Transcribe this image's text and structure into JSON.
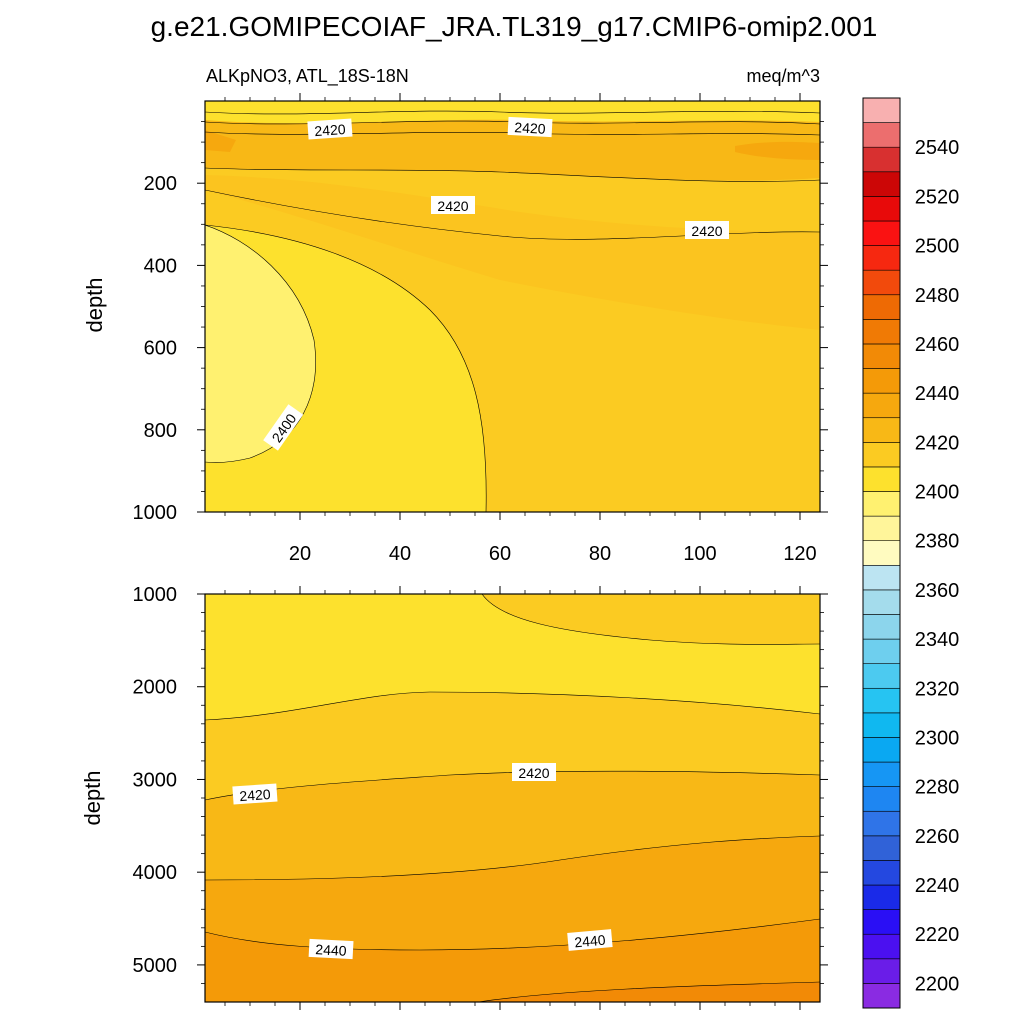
{
  "chart_data": {
    "type": "contour",
    "title": "g.e21.GOMIPECOIAF_JRA.TL319_g17.CMIP6-omip2.001",
    "panels": [
      {
        "name": "upper",
        "left_label": "ALKpNO3, ATL_18S-18N",
        "right_label": "meq/m^3",
        "ylabel": "depth",
        "xlim": [
          1,
          124
        ],
        "ylim": [
          0,
          1000
        ],
        "y_inverted": true,
        "x_ticks": [
          "20",
          "40",
          "60",
          "80",
          "100",
          "120"
        ],
        "y_ticks": [
          "200",
          "400",
          "600",
          "800",
          "1000"
        ],
        "contour_labels": [
          "2420",
          "2420",
          "2420",
          "2420",
          "2400"
        ],
        "regions": [
          {
            "level": 2390,
            "color": "#fff170",
            "points": [
              [
                1,
                320
              ],
              [
                8,
                360
              ],
              [
                15,
                440
              ],
              [
                21,
                540
              ],
              [
                22,
                640
              ],
              [
                16,
                760
              ],
              [
                8,
                860
              ],
              [
                1,
                900
              ]
            ]
          },
          {
            "level": 2400,
            "color": "#fde12d"
          },
          {
            "level": 2410,
            "color": "#fbcb22"
          }
        ]
      },
      {
        "name": "lower",
        "ylabel": "depth",
        "xlim": [
          1,
          124
        ],
        "ylim": [
          1000,
          5400
        ],
        "y_inverted": true,
        "y_ticks": [
          "1000",
          "2000",
          "3000",
          "4000",
          "5000"
        ],
        "contour_labels": [
          "2420",
          "2420",
          "2440",
          "2440"
        ],
        "regions": [
          {
            "level": 2400,
            "color": "#fde12d"
          },
          {
            "level": 2410,
            "color": "#fbcb22"
          },
          {
            "level": 2420,
            "color": "#f8b816"
          },
          {
            "level": 2430,
            "color": "#f6a80e"
          },
          {
            "level": 2440,
            "color": "#f49a08"
          }
        ]
      }
    ],
    "colorbar": {
      "levels": [
        2195,
        2200,
        2210,
        2220,
        2230,
        2240,
        2250,
        2260,
        2270,
        2280,
        2290,
        2300,
        2310,
        2320,
        2330,
        2340,
        2350,
        2360,
        2370,
        2380,
        2390,
        2400,
        2410,
        2420,
        2430,
        2440,
        2450,
        2460,
        2470,
        2480,
        2490,
        2500,
        2510,
        2520,
        2530,
        2540,
        2550
      ],
      "colors": [
        "#8a2be2",
        "#6a1de8",
        "#4b10f0",
        "#2a0ff5",
        "#1a2ae8",
        "#2448e0",
        "#3062d8",
        "#2f74e8",
        "#1e86f2",
        "#1696f4",
        "#0aa8f2",
        "#10b8f0",
        "#26c4f2",
        "#4ccaf0",
        "#6ecfee",
        "#8cd5ec",
        "#a4dcec",
        "#bce4f2",
        "#fffbc0",
        "#fff59a",
        "#fff170",
        "#fde12d",
        "#fbcb22",
        "#f8b816",
        "#f6a80e",
        "#f49a08",
        "#f28a06",
        "#f07a05",
        "#ee6a04",
        "#f24a0c",
        "#f62810",
        "#fa1212",
        "#e80a0a",
        "#cc0606",
        "#d83030",
        "#ec6e6e",
        "#f8b0b0"
      ],
      "tick_labels": [
        "2200",
        "2220",
        "2240",
        "2260",
        "2280",
        "2300",
        "2320",
        "2340",
        "2360",
        "2380",
        "2400",
        "2420",
        "2440",
        "2460",
        "2480",
        "2500",
        "2520",
        "2540"
      ]
    }
  }
}
